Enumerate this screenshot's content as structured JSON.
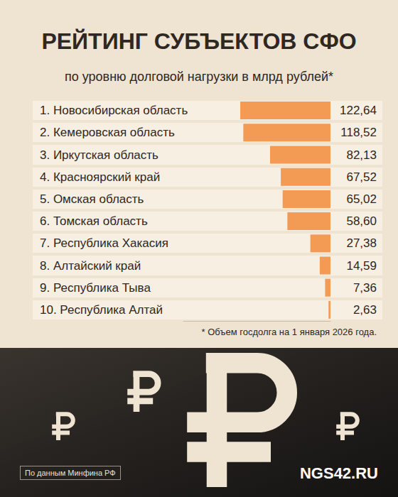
{
  "chart_data": {
    "type": "bar",
    "title": "РЕЙТИНГ СУБЪЕКТОВ СФО",
    "subtitle": "по уровню долговой нагрузки в млрд рублей*",
    "categories": [
      "1. Новосибирская область",
      "2. Кемеровская область",
      "3. Иркутская область",
      "4. Красноярский край",
      "5. Омская область",
      "6. Томская область",
      "7. Республика Хакасия",
      "8. Алтайский край",
      "9. Республика Тыва",
      "10. Республика Алтай"
    ],
    "values": [
      122.64,
      118.52,
      82.13,
      67.52,
      65.02,
      58.6,
      27.38,
      14.59,
      7.36,
      2.63
    ],
    "value_labels": [
      "122,64",
      "118,52",
      "82,13",
      "67,52",
      "65,02",
      "58,60",
      "27,38",
      "14,59",
      "7,36",
      "2,63"
    ],
    "color": "#f39a55",
    "orientation": "horizontal",
    "data_labels": true,
    "tick_labels": "y",
    "grid": false,
    "xlim": [
      0,
      200
    ],
    "footnote": "* Объем госдолга на 1 января 2026 года.",
    "source": "По данным Минфина РФ",
    "brand": "NGS42.RU"
  }
}
